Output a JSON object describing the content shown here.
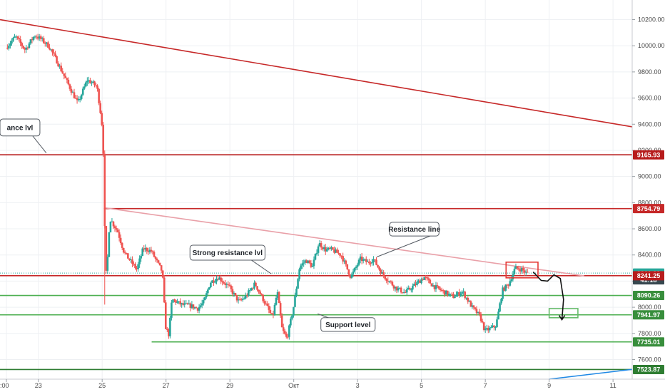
{
  "chart_data": {
    "type": "candlestick",
    "y_axis": {
      "position": "right",
      "range": [
        7450,
        10350
      ],
      "ticks": [
        "7600.00",
        "7800.00",
        "8000.00",
        "8200.00",
        "8400.00",
        "8600.00",
        "8800.00",
        "9000.00",
        "9200.00",
        "9400.00",
        "9600.00",
        "9800.00",
        "10000.00",
        "10200.00"
      ],
      "tick_values": [
        7600,
        7800,
        8000,
        8200,
        8400,
        8600,
        8800,
        9000,
        9200,
        9400,
        9600,
        9800,
        10000,
        10200
      ]
    },
    "x_axis": {
      "range_days": [
        -0.2,
        19.6
      ],
      "ticks": [
        {
          "label": ":00",
          "day": 0
        },
        {
          "label": "23",
          "day": 1
        },
        {
          "label": "25",
          "day": 3
        },
        {
          "label": "27",
          "day": 5
        },
        {
          "label": "29",
          "day": 7
        },
        {
          "label": "Окт",
          "day": 9
        },
        {
          "label": "3",
          "day": 11
        },
        {
          "label": "5",
          "day": 13
        },
        {
          "label": "7",
          "day": 15
        },
        {
          "label": "9",
          "day": 17
        },
        {
          "label": "11",
          "day": 19
        }
      ]
    },
    "grid": true,
    "price_badges": [
      {
        "label": "9165.93",
        "value": 9165.93,
        "color": "#b71c1c"
      },
      {
        "label": "8754.79",
        "value": 8754.79,
        "color": "#c62828"
      },
      {
        "label": "8261.29",
        "value": 8261.29,
        "color": "#26a69a"
      },
      {
        "label": "41:18",
        "value": 8210,
        "color": "#37474f"
      },
      {
        "label": "8241.25",
        "value": 8241.25,
        "color": "#b71c1c"
      },
      {
        "label": "8090.26",
        "value": 8090.26,
        "color": "#388e3c"
      },
      {
        "label": "7941.97",
        "value": 7941.97,
        "color": "#388e3c"
      },
      {
        "label": "7735.01",
        "value": 7735.01,
        "color": "#388e3c"
      },
      {
        "label": "7523.87",
        "value": 7523.87,
        "color": "#2e7d32"
      }
    ],
    "horizontal_levels": [
      {
        "value": 9165.93,
        "color": "#b71c1c",
        "from_day": -0.2
      },
      {
        "value": 8754.79,
        "color": "#c62828",
        "from_day": 3.05
      },
      {
        "value": 8241.25,
        "color": "#c62828",
        "from_day": -0.2
      },
      {
        "value": 8090.26,
        "color": "#4caf50",
        "from_day": -0.2
      },
      {
        "value": 7941.97,
        "color": "#4caf50",
        "from_day": -0.2
      },
      {
        "value": 7735.01,
        "color": "#4caf50",
        "from_day": 4.55
      },
      {
        "value": 7523.87,
        "color": "#2e7d32",
        "from_day": -0.2
      }
    ],
    "trend_lines": [
      {
        "name": "long-downtrend",
        "color": "#c62828",
        "points": [
          [
            -0.2,
            10200
          ],
          [
            19.6,
            9380
          ]
        ]
      },
      {
        "name": "resistance-line",
        "color": "#e9a0a8",
        "points": [
          [
            3.1,
            8760
          ],
          [
            18.1,
            8240
          ]
        ]
      },
      {
        "name": "lower-trend",
        "color": "#1e88e5",
        "points": [
          [
            17.0,
            7450
          ],
          [
            19.6,
            7525
          ]
        ]
      }
    ],
    "boxes": [
      {
        "color": "#e53935",
        "x": [
          15.65,
          16.65
        ],
        "y": [
          8225,
          8345
        ]
      },
      {
        "color": "#66bb6a",
        "x": [
          17.0,
          17.9
        ],
        "y": [
          7920,
          7990
        ]
      }
    ],
    "projection": {
      "color": "#111111",
      "points": [
        [
          16.5,
          8270
        ],
        [
          16.75,
          8205
        ],
        [
          16.95,
          8200
        ],
        [
          17.15,
          8248
        ],
        [
          17.35,
          8220
        ],
        [
          17.45,
          8060
        ],
        [
          17.4,
          7905
        ]
      ]
    },
    "callouts": [
      {
        "text": "ance lvl",
        "value": 9375,
        "box_x": [
          -0.2,
          1.05
        ],
        "box_y": [
          9310,
          9440
        ],
        "pointer": [
          1.25,
          9180
        ]
      },
      {
        "text": "Resistance line",
        "value": 8590,
        "box_x": [
          12.0,
          13.55
        ],
        "box_y": [
          8545,
          8650
        ],
        "pointer": [
          11.6,
          8385
        ]
      },
      {
        "text": "Strong resistance lvl",
        "value": 8415,
        "box_x": [
          5.75,
          8.1
        ],
        "box_y": [
          8360,
          8475
        ],
        "pointer": [
          8.3,
          8255
        ]
      },
      {
        "text": "Support level",
        "value": 7870,
        "box_x": [
          9.85,
          11.55
        ],
        "box_y": [
          7815,
          7920
        ],
        "pointer": [
          9.75,
          7950
        ]
      }
    ],
    "price_anchors": [
      [
        0,
        9985
      ],
      [
        0.3,
        10070
      ],
      [
        0.6,
        9970
      ],
      [
        0.9,
        10080
      ],
      [
        1.1,
        10050
      ],
      [
        1.35,
        9995
      ],
      [
        1.6,
        9880
      ],
      [
        1.9,
        9730
      ],
      [
        2.25,
        9560
      ],
      [
        2.55,
        9740
      ],
      [
        2.85,
        9690
      ],
      [
        3.0,
        9420
      ],
      [
        3.08,
        9040
      ],
      [
        3.1,
        8420
      ],
      [
        3.15,
        8220
      ],
      [
        3.25,
        8680
      ],
      [
        3.5,
        8580
      ],
      [
        3.7,
        8420
      ],
      [
        3.85,
        8370
      ],
      [
        4.1,
        8290
      ],
      [
        4.3,
        8450
      ],
      [
        4.55,
        8430
      ],
      [
        4.9,
        8270
      ],
      [
        5.0,
        7850
      ],
      [
        5.1,
        7790
      ],
      [
        5.2,
        8060
      ],
      [
        5.5,
        8020
      ],
      [
        5.8,
        8010
      ],
      [
        6.0,
        7990
      ],
      [
        6.2,
        8040
      ],
      [
        6.4,
        8190
      ],
      [
        6.65,
        8230
      ],
      [
        7.0,
        8150
      ],
      [
        7.3,
        8040
      ],
      [
        7.5,
        8080
      ],
      [
        7.8,
        8180
      ],
      [
        8.1,
        8040
      ],
      [
        8.35,
        7920
      ],
      [
        8.5,
        8120
      ],
      [
        8.65,
        7830
      ],
      [
        8.8,
        7760
      ],
      [
        9.0,
        7990
      ],
      [
        9.2,
        8310
      ],
      [
        9.4,
        8360
      ],
      [
        9.6,
        8310
      ],
      [
        9.8,
        8490
      ],
      [
        10.0,
        8440
      ],
      [
        10.2,
        8440
      ],
      [
        10.5,
        8400
      ],
      [
        10.8,
        8230
      ],
      [
        11.1,
        8370
      ],
      [
        11.35,
        8340
      ],
      [
        11.5,
        8370
      ],
      [
        11.8,
        8250
      ],
      [
        12.2,
        8150
      ],
      [
        12.5,
        8110
      ],
      [
        12.8,
        8170
      ],
      [
        13.1,
        8230
      ],
      [
        13.4,
        8160
      ],
      [
        13.7,
        8120
      ],
      [
        14.0,
        8080
      ],
      [
        14.3,
        8120
      ],
      [
        14.6,
        8000
      ],
      [
        14.85,
        7930
      ],
      [
        15.0,
        7820
      ],
      [
        15.2,
        7840
      ],
      [
        15.35,
        7860
      ],
      [
        15.55,
        8130
      ],
      [
        15.75,
        8180
      ],
      [
        15.95,
        8300
      ],
      [
        16.15,
        8290
      ],
      [
        16.3,
        8260
      ]
    ]
  }
}
